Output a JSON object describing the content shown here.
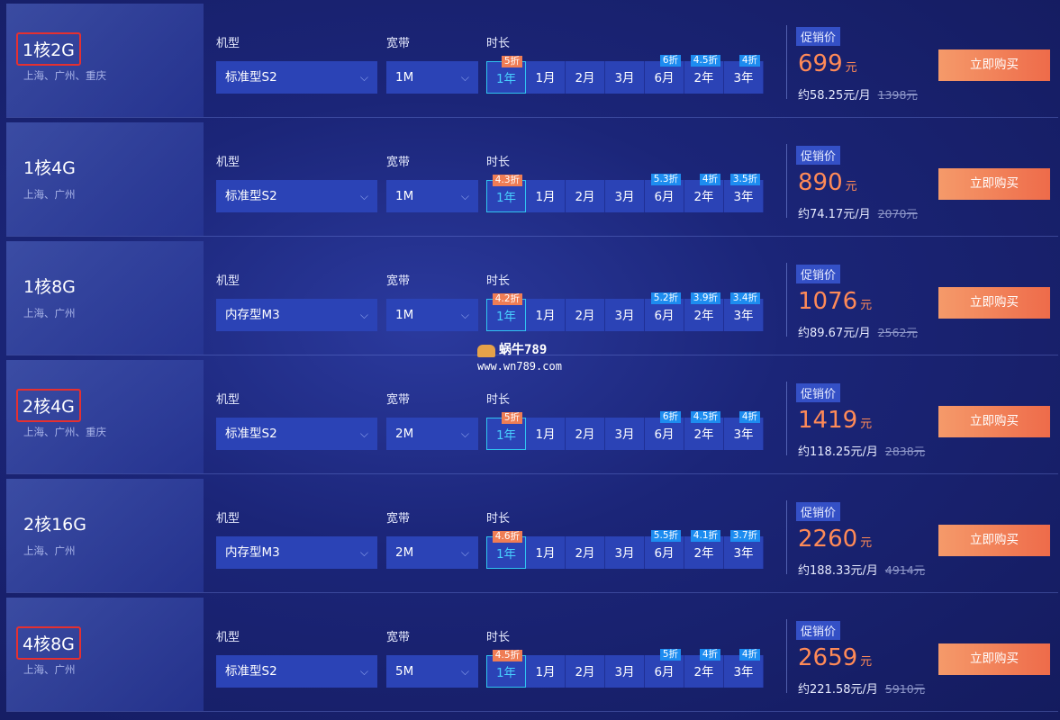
{
  "labels": {
    "model": "机型",
    "bandwidth": "宽带",
    "duration": "时长",
    "promo": "促销价",
    "buy": "立即购买",
    "chevron": "chevron-down-icon"
  },
  "durations": [
    "1年",
    "1月",
    "2月",
    "3月",
    "6月",
    "2年",
    "3年"
  ],
  "rows": [
    {
      "spec": "1核2G",
      "regions": "上海、广州、重庆",
      "model": "标准型S2",
      "bandwidth": "1M",
      "disc": {
        "y1": "5折",
        "m6": "6折",
        "y2": "4.5折",
        "y3": "4折"
      },
      "price": "699",
      "unit": "元",
      "monthly": "约58.25元/月",
      "orig": "1398元"
    },
    {
      "spec": "1核4G",
      "regions": "上海、广州",
      "model": "标准型S2",
      "bandwidth": "1M",
      "disc": {
        "y1": "4.3折",
        "m6": "5.3折",
        "y2": "4折",
        "y3": "3.5折"
      },
      "price": "890",
      "unit": "元",
      "monthly": "约74.17元/月",
      "orig": "2070元"
    },
    {
      "spec": "1核8G",
      "regions": "上海、广州",
      "model": "内存型M3",
      "bandwidth": "1M",
      "disc": {
        "y1": "4.2折",
        "m6": "5.2折",
        "y2": "3.9折",
        "y3": "3.4折"
      },
      "price": "1076",
      "unit": "元",
      "monthly": "约89.67元/月",
      "orig": "2562元"
    },
    {
      "spec": "2核4G",
      "regions": "上海、广州、重庆",
      "model": "标准型S2",
      "bandwidth": "2M",
      "disc": {
        "y1": "5折",
        "m6": "6折",
        "y2": "4.5折",
        "y3": "4折"
      },
      "price": "1419",
      "unit": "元",
      "monthly": "约118.25元/月",
      "orig": "2838元"
    },
    {
      "spec": "2核16G",
      "regions": "上海、广州",
      "model": "内存型M3",
      "bandwidth": "2M",
      "disc": {
        "y1": "4.6折",
        "m6": "5.5折",
        "y2": "4.1折",
        "y3": "3.7折"
      },
      "price": "2260",
      "unit": "元",
      "monthly": "约188.33元/月",
      "orig": "4914元"
    },
    {
      "spec": "4核8G",
      "regions": "上海、广州",
      "model": "标准型S2",
      "bandwidth": "5M",
      "disc": {
        "y1": "4.5折",
        "m6": "5折",
        "y2": "4折",
        "y3": "4折"
      },
      "price": "2659",
      "unit": "元",
      "monthly": "约221.58元/月",
      "orig": "5910元"
    }
  ],
  "watermark": {
    "title": "蜗牛789",
    "url": "www.wn789.com"
  }
}
